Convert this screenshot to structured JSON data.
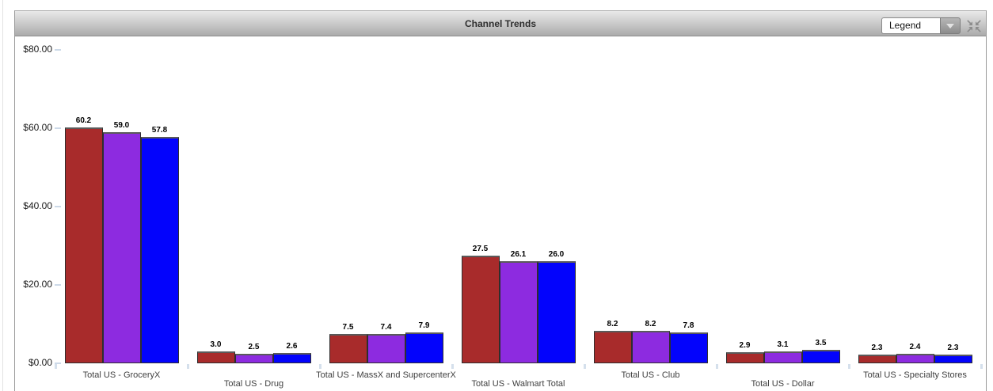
{
  "header": {
    "title": "Channel Trends",
    "legend_label": "Legend"
  },
  "icons": {
    "legend_dropdown_arrow": "chevron-down-triangle",
    "collapse": "four-arrows-collapse"
  },
  "colors": {
    "series_red": "#A82B2B",
    "series_purple": "#8D2BE0",
    "series_blue": "#0303FC",
    "tick": "#ccd9e8",
    "header_gradient_top": "#e9e9e9",
    "header_gradient_bottom": "#ababab"
  },
  "chart_data": {
    "type": "bar",
    "title": "Channel Trends",
    "categories": [
      "Total US - GroceryX",
      "Total US - Drug",
      "Total US - MassX and SupercenterX",
      "Total US - Walmart Total",
      "Total US - Club",
      "Total US - Dollar",
      "Total US - Specialty Stores"
    ],
    "series": [
      {
        "name": "series-1-red",
        "color": "#A82B2B",
        "values": [
          60.2,
          3.0,
          7.5,
          27.5,
          8.2,
          2.9,
          2.3
        ]
      },
      {
        "name": "series-2-purple",
        "color": "#8D2BE0",
        "values": [
          59.0,
          2.5,
          7.4,
          26.1,
          8.2,
          3.1,
          2.4
        ]
      },
      {
        "name": "series-3-blue",
        "color": "#0303FC",
        "values": [
          57.8,
          2.6,
          7.9,
          26.0,
          7.8,
          3.5,
          2.3
        ]
      }
    ],
    "yticks": [
      0,
      20,
      40,
      60,
      80
    ],
    "ytick_labels": [
      "$0.00",
      "$20.00",
      "$40.00",
      "$60.00",
      "$80.00"
    ],
    "ylim": [
      0,
      80
    ],
    "value_labels": true,
    "value_label_decimals": 1,
    "grid": false,
    "legend_position": "collapsed-dropdown"
  }
}
